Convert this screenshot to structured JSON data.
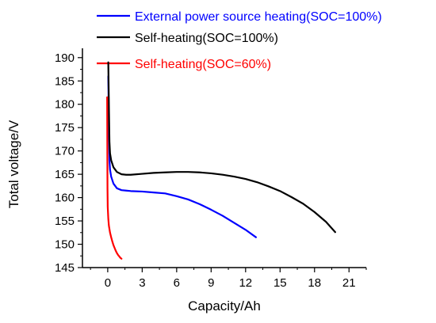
{
  "chart_data": {
    "type": "line",
    "title": "",
    "xlabel": "Capacity/Ah",
    "ylabel": "Total voltage/V",
    "xlim": [
      -2.2,
      22.5
    ],
    "ylim": [
      145,
      192
    ],
    "x_ticks": [
      0,
      3,
      6,
      9,
      12,
      15,
      18,
      21
    ],
    "x_tick_labels": [
      "0",
      "3",
      "6",
      "9",
      "12",
      "15",
      "18",
      "21"
    ],
    "y_ticks": [
      145,
      150,
      155,
      160,
      165,
      170,
      175,
      180,
      185,
      190
    ],
    "y_tick_labels": [
      "145",
      "150",
      "155",
      "160",
      "165",
      "170",
      "175",
      "180",
      "185",
      "190"
    ],
    "grid": false,
    "legend_position": "top-right",
    "series": [
      {
        "name": "External power source heating(SOC=100%)",
        "color": "#0000ff",
        "x": [
          0.05,
          0.1,
          0.15,
          0.2,
          0.3,
          0.5,
          0.8,
          1.2,
          1.6,
          2.0,
          3.0,
          4.0,
          5.0,
          6.0,
          7.0,
          8.0,
          9.0,
          10.0,
          11.0,
          12.0,
          12.9
        ],
        "y": [
          186,
          176,
          168,
          166,
          164.5,
          163,
          162,
          161.6,
          161.5,
          161.4,
          161.3,
          161.1,
          160.9,
          160.3,
          159.6,
          158.6,
          157.4,
          156.1,
          154.6,
          153.1,
          151.5
        ]
      },
      {
        "name": "Self-heating(SOC=100%)",
        "color": "#000000",
        "x": [
          0.05,
          0.1,
          0.15,
          0.2,
          0.3,
          0.5,
          0.8,
          1.2,
          1.6,
          2.0,
          3.0,
          4.0,
          5.0,
          6.0,
          7.0,
          8.0,
          9.0,
          10.0,
          11.0,
          12.0,
          13.0,
          14.0,
          15.0,
          16.0,
          17.0,
          18.0,
          19.0,
          19.8
        ],
        "y": [
          189,
          180,
          172,
          169.5,
          168,
          166.5,
          165.5,
          165.0,
          164.9,
          164.9,
          165.1,
          165.3,
          165.4,
          165.5,
          165.5,
          165.4,
          165.2,
          164.9,
          164.5,
          164.0,
          163.3,
          162.4,
          161.4,
          160.1,
          158.7,
          156.9,
          154.8,
          152.6
        ]
      },
      {
        "name": "Self-heating(SOC=60%)",
        "color": "#ff0000",
        "x": [
          -0.05,
          -0.04,
          -0.03,
          -0.02,
          0.0,
          0.05,
          0.1,
          0.2,
          0.3,
          0.4,
          0.5,
          0.6,
          0.7,
          0.8,
          0.9,
          1.0,
          1.1,
          1.2
        ],
        "y": [
          181.5,
          175,
          168,
          162,
          158,
          155.5,
          154.0,
          152.5,
          151.5,
          150.6,
          149.8,
          149.2,
          148.6,
          148.1,
          147.7,
          147.4,
          147.1,
          146.9
        ]
      }
    ]
  }
}
